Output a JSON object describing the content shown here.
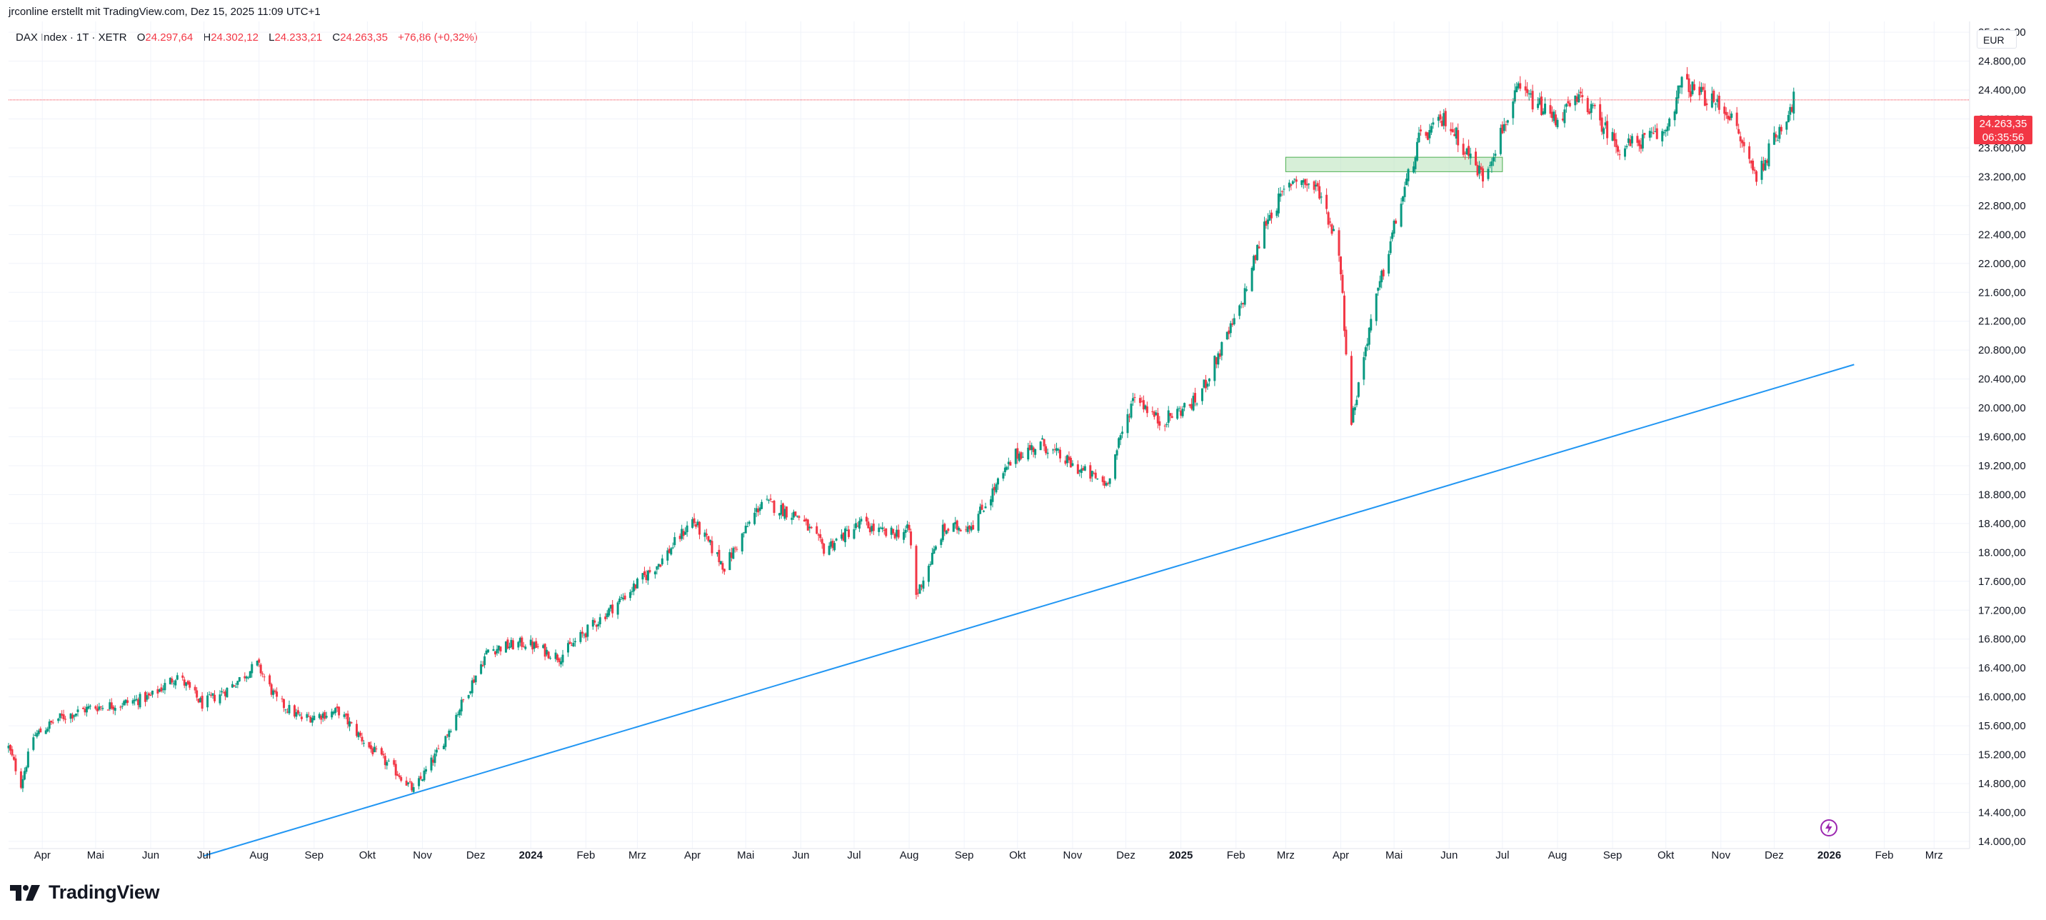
{
  "header": {
    "caption": "jrconline erstellt mit TradingView.com, Dez 15, 2025 11:09 UTC+1",
    "symbol": "DAX Index · 1T · XETR",
    "open_label": "O",
    "open": "24.297,64",
    "high_label": "H",
    "high": "24.302,12",
    "low_label": "L",
    "low": "24.233,21",
    "close_label": "C",
    "close": "24.263,35",
    "change": "+76,86 (+0,32%)"
  },
  "price_axis": {
    "currency": "EUR",
    "current_price": "24.263,35",
    "countdown": "06:35:56"
  },
  "branding": {
    "name": "TradingView"
  },
  "colors": {
    "up": "#089981",
    "down": "#f23645",
    "trendline": "#2196f3",
    "zone_fill": "#b6e2b8",
    "zone_border": "#4caf50"
  },
  "chart_data": {
    "type": "candlestick",
    "symbol": "DAX Index",
    "interval": "1T",
    "exchange": "XETR",
    "currency": "EUR",
    "ylim": [
      13900,
      25350
    ],
    "y_ticks": [
      "25.200,00",
      "24.800,00",
      "24.400,00",
      "24.000,00",
      "23.600,00",
      "23.200,00",
      "22.800,00",
      "22.400,00",
      "22.000,00",
      "21.600,00",
      "21.200,00",
      "20.800,00",
      "20.400,00",
      "20.000,00",
      "19.600,00",
      "19.200,00",
      "18.800,00",
      "18.400,00",
      "18.000,00",
      "17.600,00",
      "17.200,00",
      "16.800,00",
      "16.400,00",
      "16.000,00",
      "15.600,00",
      "15.200,00",
      "14.800,00",
      "14.400,00",
      "14.000,00"
    ],
    "x_ticks": [
      {
        "label": "Apr",
        "date": "2023-04-01"
      },
      {
        "label": "Mai",
        "date": "2023-05-01"
      },
      {
        "label": "Jun",
        "date": "2023-06-01"
      },
      {
        "label": "Jul",
        "date": "2023-07-01"
      },
      {
        "label": "Aug",
        "date": "2023-08-01"
      },
      {
        "label": "Sep",
        "date": "2023-09-01"
      },
      {
        "label": "Okt",
        "date": "2023-10-01"
      },
      {
        "label": "Nov",
        "date": "2023-11-01"
      },
      {
        "label": "Dez",
        "date": "2023-12-01"
      },
      {
        "label": "2024",
        "date": "2024-01-01",
        "bold": true
      },
      {
        "label": "Feb",
        "date": "2024-02-01"
      },
      {
        "label": "Mrz",
        "date": "2024-03-01"
      },
      {
        "label": "Apr",
        "date": "2024-04-01"
      },
      {
        "label": "Mai",
        "date": "2024-05-01"
      },
      {
        "label": "Jun",
        "date": "2024-06-01"
      },
      {
        "label": "Jul",
        "date": "2024-07-01"
      },
      {
        "label": "Aug",
        "date": "2024-08-01"
      },
      {
        "label": "Sep",
        "date": "2024-09-01"
      },
      {
        "label": "Okt",
        "date": "2024-10-01"
      },
      {
        "label": "Nov",
        "date": "2024-11-01"
      },
      {
        "label": "Dez",
        "date": "2024-12-01"
      },
      {
        "label": "2025",
        "date": "2025-01-01",
        "bold": true
      },
      {
        "label": "Feb",
        "date": "2025-02-01"
      },
      {
        "label": "Mrz",
        "date": "2025-03-01"
      },
      {
        "label": "Apr",
        "date": "2025-04-01"
      },
      {
        "label": "Mai",
        "date": "2025-05-01"
      },
      {
        "label": "Jun",
        "date": "2025-06-01"
      },
      {
        "label": "Jul",
        "date": "2025-07-01"
      },
      {
        "label": "Aug",
        "date": "2025-08-01"
      },
      {
        "label": "Sep",
        "date": "2025-09-01"
      },
      {
        "label": "Okt",
        "date": "2025-10-01"
      },
      {
        "label": "Nov",
        "date": "2025-11-01"
      },
      {
        "label": "Dez",
        "date": "2025-12-01"
      },
      {
        "label": "2026",
        "date": "2026-01-01",
        "bold": true
      },
      {
        "label": "Feb",
        "date": "2026-02-01"
      },
      {
        "label": "Mrz",
        "date": "2026-03-01"
      }
    ],
    "close_path": [
      [
        "2023-03-13",
        15300
      ],
      [
        "2023-03-20",
        14800
      ],
      [
        "2023-03-27",
        15450
      ],
      [
        "2023-04-10",
        15700
      ],
      [
        "2023-04-28",
        15850
      ],
      [
        "2023-05-15",
        15900
      ],
      [
        "2023-06-01",
        16000
      ],
      [
        "2023-06-16",
        16300
      ],
      [
        "2023-06-30",
        15900
      ],
      [
        "2023-07-14",
        16100
      ],
      [
        "2023-07-31",
        16450
      ],
      [
        "2023-08-11",
        15950
      ],
      [
        "2023-08-25",
        15700
      ],
      [
        "2023-09-15",
        15800
      ],
      [
        "2023-10-02",
        15300
      ],
      [
        "2023-10-20",
        14900
      ],
      [
        "2023-10-27",
        14700
      ],
      [
        "2023-11-10",
        15250
      ],
      [
        "2023-11-24",
        15950
      ],
      [
        "2023-12-08",
        16650
      ],
      [
        "2023-12-29",
        16750
      ],
      [
        "2024-01-17",
        16550
      ],
      [
        "2024-02-01",
        16900
      ],
      [
        "2024-02-23",
        17400
      ],
      [
        "2024-03-15",
        17900
      ],
      [
        "2024-04-01",
        18450
      ],
      [
        "2024-04-19",
        17800
      ],
      [
        "2024-05-10",
        18700
      ],
      [
        "2024-05-31",
        18500
      ],
      [
        "2024-06-14",
        18050
      ],
      [
        "2024-07-05",
        18400
      ],
      [
        "2024-07-19",
        18250
      ],
      [
        "2024-08-01",
        18300
      ],
      [
        "2024-08-05",
        17400
      ],
      [
        "2024-08-20",
        18300
      ],
      [
        "2024-09-06",
        18400
      ],
      [
        "2024-09-30",
        19350
      ],
      [
        "2024-10-15",
        19500
      ],
      [
        "2024-11-01",
        19200
      ],
      [
        "2024-11-20",
        18950
      ],
      [
        "2024-12-06",
        20200
      ],
      [
        "2024-12-20",
        19800
      ],
      [
        "2025-01-10",
        20100
      ],
      [
        "2025-02-03",
        21350
      ],
      [
        "2025-02-18",
        22600
      ],
      [
        "2025-03-06",
        23200
      ],
      [
        "2025-03-20",
        23000
      ],
      [
        "2025-03-31",
        22200
      ],
      [
        "2025-04-07",
        19800
      ],
      [
        "2025-04-17",
        21100
      ],
      [
        "2025-05-02",
        22600
      ],
      [
        "2025-05-15",
        23700
      ],
      [
        "2025-05-30",
        24000
      ],
      [
        "2025-06-20",
        23200
      ],
      [
        "2025-07-10",
        24400
      ],
      [
        "2025-07-31",
        24000
      ],
      [
        "2025-08-15",
        24300
      ],
      [
        "2025-09-05",
        23600
      ],
      [
        "2025-09-30",
        23800
      ],
      [
        "2025-10-10",
        24500
      ],
      [
        "2025-11-05",
        24100
      ],
      [
        "2025-11-21",
        23200
      ],
      [
        "2025-12-12",
        24263
      ]
    ],
    "last_close": 24263.35,
    "trendline": {
      "start": [
        "2023-07-01",
        13800
      ],
      "end": [
        "2026-01-15",
        20600
      ]
    },
    "resistance_zone": {
      "x0": "2025-03-01",
      "x1": "2025-07-01",
      "y0": 23270,
      "y1": 23470
    },
    "grid": true,
    "legend": "top-left"
  }
}
